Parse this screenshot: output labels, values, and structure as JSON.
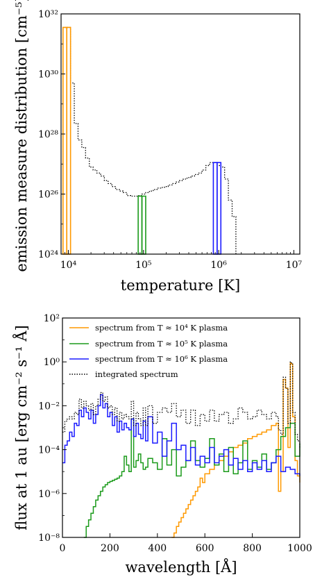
{
  "chart_data": [
    {
      "type": "step-histogram",
      "xscale": "log",
      "yscale": "log",
      "xlabel": "temperature [K]",
      "ylabel": "emission measure distribution [cm⁻⁵]",
      "xlim": [
        8000,
        12000000
      ],
      "ylim": [
        1e+24,
        1e+32
      ],
      "xtick_labels": [
        "10⁴",
        "10⁵",
        "10⁶",
        "10⁷"
      ],
      "ytick_labels": [
        "10²⁴",
        "10²⁶",
        "10²⁸",
        "10³⁰",
        "10³²"
      ],
      "grid": false,
      "series": [
        {
          "style": "dotted",
          "color": "#000000",
          "edges_log10": [
            3.929,
            3.979,
            4.029,
            4.079,
            4.129,
            4.179,
            4.229,
            4.279,
            4.329,
            4.379,
            4.429,
            4.479,
            4.529,
            4.579,
            4.629,
            4.679,
            4.729,
            4.779,
            4.829,
            4.879,
            4.929,
            4.979,
            5.029,
            5.079,
            5.129,
            5.179,
            5.229,
            5.279,
            5.329,
            5.379,
            5.429,
            5.479,
            5.529,
            5.579,
            5.629,
            5.679,
            5.729,
            5.779,
            5.829,
            5.879,
            5.929,
            5.979,
            6.029,
            6.079,
            6.129,
            6.179,
            6.229
          ],
          "values_log10": [
            31.55,
            31.55,
            29.7,
            28.35,
            27.8,
            27.55,
            27.2,
            26.9,
            26.8,
            26.7,
            26.6,
            26.45,
            26.35,
            26.25,
            26.15,
            26.1,
            26.05,
            25.95,
            25.93,
            25.93,
            25.95,
            26.0,
            26.05,
            26.1,
            26.15,
            26.2,
            26.22,
            26.25,
            26.3,
            26.35,
            26.4,
            26.45,
            26.5,
            26.55,
            26.6,
            26.65,
            26.7,
            26.8,
            26.95,
            27.05,
            27.05,
            26.95,
            26.9,
            26.5,
            25.8,
            25.25
          ]
        },
        {
          "style": "solid",
          "color": "#ff9900",
          "edges_log10": [
            3.929,
            3.979,
            4.029
          ],
          "values_log10": [
            31.55,
            31.55
          ]
        },
        {
          "style": "solid",
          "color": "#1a9a1a",
          "edges_log10": [
            4.929,
            4.979,
            5.029
          ],
          "values_log10": [
            25.93,
            25.93
          ]
        },
        {
          "style": "solid",
          "color": "#1a1aff",
          "edges_log10": [
            5.929,
            5.979,
            6.029
          ],
          "values_log10": [
            27.05,
            27.05
          ]
        }
      ]
    },
    {
      "type": "step-line",
      "xscale": "linear",
      "yscale": "log",
      "xlabel": "wavelength [Å]",
      "ylabel": "flux at 1 au [erg cm⁻² s⁻¹ Å]",
      "xlim": [
        0,
        1000
      ],
      "ylim": [
        1e-08,
        100
      ],
      "xtick_labels": [
        "0",
        "200",
        "400",
        "600",
        "800",
        "1000"
      ],
      "ytick_labels": [
        "10⁻⁸",
        "10⁻⁶",
        "10⁻⁴",
        "10⁻²",
        "10⁰",
        "10²"
      ],
      "legend_position": "upper-left",
      "grid": false,
      "series": [
        {
          "name": "spectrum from T ≈ 10⁴ K plasma",
          "color": "#ff9900",
          "style": "solid",
          "x": [
            460,
            470,
            480,
            490,
            500,
            510,
            520,
            530,
            540,
            550,
            560,
            570,
            580,
            590,
            600,
            620,
            640,
            660,
            680,
            700,
            720,
            740,
            760,
            780,
            800,
            820,
            840,
            860,
            880,
            900,
            910,
            920,
            930,
            940,
            950,
            960,
            965,
            970,
            980,
            990,
            1000
          ],
          "y_log10": [
            -8,
            -7.8,
            -7.5,
            -7.3,
            -7.1,
            -6.9,
            -6.7,
            -6.5,
            -6.3,
            -6.1,
            -5.9,
            -5.7,
            -5.3,
            -5.5,
            -5.1,
            -4.9,
            -4.7,
            -4.5,
            -4.3,
            -4.1,
            -3.9,
            -3.8,
            -3.7,
            -3.5,
            -3.4,
            -3.3,
            -3.2,
            -3.1,
            -2.9,
            -2.8,
            -5.9,
            -5.0,
            -0.8,
            -1.2,
            -3.9,
            -0.05,
            -0.1,
            -2.5,
            -4.5,
            -5.2,
            -5.5
          ]
        },
        {
          "name": "spectrum from T ≈ 10⁵ K plasma",
          "color": "#1a9a1a",
          "style": "solid",
          "x": [
            90,
            100,
            110,
            120,
            130,
            140,
            150,
            160,
            170,
            180,
            190,
            200,
            210,
            220,
            230,
            240,
            250,
            260,
            270,
            280,
            290,
            300,
            310,
            320,
            330,
            340,
            350,
            360,
            380,
            400,
            420,
            440,
            460,
            480,
            500,
            520,
            540,
            560,
            580,
            600,
            620,
            640,
            660,
            680,
            700,
            720,
            740,
            760,
            780,
            800,
            820,
            840,
            860,
            880,
            900,
            920,
            940,
            960,
            980,
            1000
          ],
          "y_log10": [
            -8,
            -7.5,
            -7.2,
            -6.9,
            -6.6,
            -6.3,
            -6.1,
            -5.9,
            -5.7,
            -5.6,
            -5.5,
            -5.45,
            -5.4,
            -5.35,
            -5.3,
            -5.2,
            -5.0,
            -4.3,
            -4.7,
            -5.0,
            -2.6,
            -4.8,
            -4.5,
            -4.2,
            -4.6,
            -4.9,
            -4.8,
            -4.4,
            -4.6,
            -4.9,
            -3.5,
            -4.7,
            -4.0,
            -5.2,
            -4.8,
            -4.5,
            -3.6,
            -4.5,
            -4.8,
            -4.4,
            -3.5,
            -4.7,
            -4.2,
            -5.0,
            -3.9,
            -5.1,
            -4.6,
            -3.6,
            -4.9,
            -4.5,
            -4.8,
            -4.2,
            -4.9,
            -4.6,
            -4.0,
            -3.4,
            -3.0,
            -2.8,
            -4.3,
            -3.7
          ]
        },
        {
          "name": "spectrum from T ≈ 10⁶ K plasma",
          "color": "#1a1aff",
          "style": "solid",
          "x": [
            0,
            10,
            20,
            30,
            40,
            50,
            60,
            70,
            80,
            90,
            100,
            110,
            120,
            130,
            140,
            150,
            160,
            170,
            180,
            190,
            200,
            210,
            220,
            230,
            240,
            250,
            260,
            270,
            280,
            290,
            300,
            310,
            320,
            330,
            340,
            350,
            360,
            380,
            400,
            420,
            440,
            460,
            480,
            500,
            520,
            540,
            560,
            580,
            600,
            620,
            640,
            660,
            680,
            700,
            720,
            740,
            760,
            780,
            800,
            820,
            840,
            860,
            880,
            900,
            920,
            940,
            960,
            980,
            1000
          ],
          "y_log10": [
            -4.6,
            -3.8,
            -3.6,
            -3.2,
            -3.4,
            -2.8,
            -2.9,
            -2.2,
            -2.5,
            -2.1,
            -2.3,
            -2.6,
            -2.2,
            -2.8,
            -2.4,
            -2.0,
            -1.5,
            -2.1,
            -1.9,
            -2.5,
            -2.3,
            -2.9,
            -2.5,
            -3.2,
            -2.7,
            -3.1,
            -2.8,
            -3.0,
            -3.1,
            -2.6,
            -3.4,
            -2.8,
            -3.3,
            -3.5,
            -2.7,
            -3.6,
            -2.5,
            -3.7,
            -3.2,
            -4.3,
            -3.6,
            -2.8,
            -4.0,
            -3.8,
            -4.5,
            -3.9,
            -4.7,
            -4.3,
            -4.6,
            -3.9,
            -4.6,
            -4.3,
            -4.0,
            -4.7,
            -4.4,
            -4.9,
            -4.5,
            -5.0,
            -4.6,
            -4.9,
            -4.5,
            -5.0,
            -4.6,
            -4.3,
            -5.0,
            -4.8,
            -4.9,
            -5.1,
            -5.2
          ]
        },
        {
          "name": "integrated spectrum",
          "color": "#000000",
          "style": "dotted",
          "x": [
            0,
            10,
            20,
            30,
            40,
            50,
            60,
            70,
            80,
            90,
            100,
            110,
            120,
            130,
            140,
            150,
            160,
            170,
            180,
            190,
            200,
            210,
            220,
            230,
            240,
            250,
            260,
            270,
            280,
            290,
            300,
            310,
            320,
            330,
            340,
            350,
            360,
            380,
            400,
            420,
            440,
            460,
            480,
            500,
            520,
            540,
            560,
            580,
            600,
            620,
            640,
            660,
            680,
            700,
            720,
            740,
            760,
            780,
            800,
            820,
            840,
            860,
            880,
            900,
            910,
            920,
            930,
            940,
            950,
            960,
            965,
            970,
            980,
            990,
            1000
          ],
          "y_log10": [
            -3.2,
            -2.7,
            -2.6,
            -2.5,
            -2.6,
            -2.3,
            -2.4,
            -1.7,
            -2.1,
            -1.8,
            -2.0,
            -2.2,
            -1.9,
            -2.4,
            -2.0,
            -1.7,
            -1.4,
            -1.8,
            -1.6,
            -2.1,
            -2.0,
            -2.4,
            -2.1,
            -2.7,
            -2.3,
            -2.6,
            -2.4,
            -2.5,
            -2.6,
            -1.8,
            -2.9,
            -2.3,
            -2.6,
            -2.9,
            -2.1,
            -2.9,
            -2.0,
            -2.8,
            -2.3,
            -2.1,
            -2.3,
            -1.9,
            -2.5,
            -2.2,
            -2.8,
            -2.2,
            -2.9,
            -2.4,
            -2.7,
            -2.2,
            -2.7,
            -2.4,
            -2.3,
            -2.8,
            -2.6,
            -2.1,
            -2.3,
            -2.6,
            -2.5,
            -2.2,
            -2.4,
            -2.6,
            -2.3,
            -2.5,
            -3.1,
            -3.3,
            -0.7,
            -1.2,
            -2.8,
            0,
            -0.05,
            -2.3,
            -3.3,
            -3.6,
            -3.9
          ]
        }
      ]
    }
  ]
}
